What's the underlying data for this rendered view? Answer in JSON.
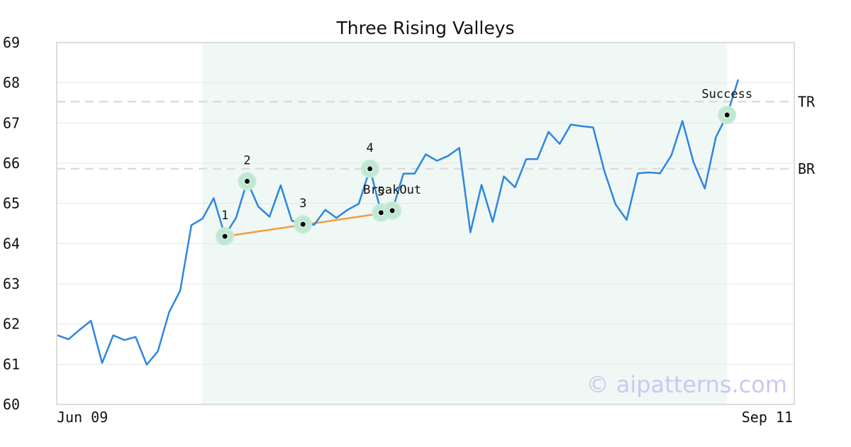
{
  "chart_data": {
    "type": "line",
    "title": "Three Rising Valleys",
    "watermark": "© aipatterns.com",
    "ylim": [
      60,
      69
    ],
    "y_ticks": [
      60,
      61,
      62,
      63,
      64,
      65,
      66,
      67,
      68,
      69
    ],
    "x_count": 62,
    "x_tick_labels": [
      {
        "index": 0,
        "label": "Jun 09"
      },
      {
        "index": 61,
        "label": "Sep 11"
      }
    ],
    "grid": true,
    "line_color": "#2e86de",
    "highlight": {
      "start": 13,
      "end": 60,
      "color": "#eff8f4"
    },
    "series": [
      {
        "values": [
          61.72,
          61.62,
          61.86,
          62.08,
          61.03,
          61.72,
          61.6,
          61.68,
          60.99,
          61.32,
          62.29,
          62.83,
          64.46,
          64.62,
          65.13,
          64.2,
          64.64,
          65.55,
          64.92,
          64.67,
          65.45,
          64.57,
          64.48,
          64.47,
          64.84,
          64.64,
          64.84,
          64.99,
          65.86,
          64.77,
          64.82,
          65.74,
          65.74,
          66.22,
          66.06,
          66.18,
          66.38,
          64.28,
          65.46,
          64.54,
          65.67,
          65.4,
          66.1,
          66.1,
          66.78,
          66.48,
          66.96,
          66.92,
          66.89,
          65.81,
          64.98,
          64.59,
          65.75,
          65.77,
          65.75,
          66.19,
          67.05,
          66.02,
          65.37,
          66.65,
          67.2,
          68.08
        ]
      }
    ],
    "reference_lines": [
      {
        "label": "TR",
        "value": 67.53
      },
      {
        "label": "BR",
        "value": 65.86
      }
    ],
    "trendline": {
      "from_index": 15,
      "to_index": 29,
      "from_value": 64.18,
      "to_value": 64.75,
      "color": "#f39c3d"
    },
    "points": [
      {
        "label": "1",
        "index": 15,
        "value": 64.18
      },
      {
        "label": "2",
        "index": 17,
        "value": 65.55
      },
      {
        "label": "3",
        "index": 22,
        "value": 64.48
      },
      {
        "label": "4",
        "index": 28,
        "value": 65.86
      },
      {
        "label": "5",
        "index": 29,
        "value": 64.77
      },
      {
        "label": "BreakOut",
        "index": 30,
        "value": 64.82
      },
      {
        "label": "Success",
        "index": 60,
        "value": 67.2
      }
    ]
  }
}
